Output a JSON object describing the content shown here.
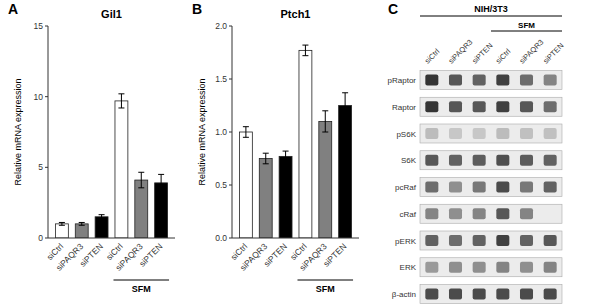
{
  "chart_data": [
    {
      "type": "bar",
      "panel_label": "A",
      "title": "Gil1",
      "ylabel": "Relative mRNA expression",
      "categories": [
        "siCtrl",
        "siPAQR3",
        "siPTEN",
        "siCtrl",
        "siPAQR3",
        "siPTEN"
      ],
      "values": [
        1.0,
        1.0,
        1.5,
        9.7,
        4.1,
        3.9
      ],
      "errors": [
        0.1,
        0.1,
        0.15,
        0.5,
        0.55,
        0.6
      ],
      "colors": [
        "white",
        "#808080",
        "black",
        "white",
        "#808080",
        "black"
      ],
      "ylim": [
        0,
        15
      ],
      "yticks": [
        0,
        5,
        10,
        15
      ],
      "annotations": [
        {
          "text": "SFM",
          "indices": [
            3,
            4,
            5
          ]
        }
      ]
    },
    {
      "type": "bar",
      "panel_label": "B",
      "title": "Ptch1",
      "ylabel": "Relative mRNA expression",
      "categories": [
        "siCtrl",
        "siPAQR3",
        "siPTEN",
        "siCtrl",
        "siPAQR3",
        "siPTEN"
      ],
      "values": [
        1.0,
        0.75,
        0.77,
        1.77,
        1.1,
        1.25
      ],
      "errors": [
        0.05,
        0.05,
        0.05,
        0.05,
        0.1,
        0.12
      ],
      "colors": [
        "white",
        "#808080",
        "black",
        "white",
        "#808080",
        "black"
      ],
      "ylim": [
        0,
        2.0
      ],
      "yticks": [
        {
          "value": 0,
          "label": "0.0"
        },
        0.5,
        {
          "value": 1,
          "label": "1.0"
        },
        1.5,
        {
          "value": 2,
          "label": "2.0"
        }
      ],
      "annotations": [
        {
          "text": "SFM",
          "indices": [
            3,
            4,
            5
          ]
        }
      ]
    },
    {
      "type": "blot",
      "panel_label": "C",
      "title": "NIH/3T3",
      "col_labels": [
        "siCtrl",
        "siPAQR3",
        "siPTEN",
        "siCtrl",
        "siPAQR3",
        "siPTEN"
      ],
      "row_labels": [
        "pRaptor",
        "Raptor",
        "pS6K",
        "S6K",
        "pcRaf",
        "cRaf",
        "pERK",
        "ERK",
        "β-actin"
      ],
      "cells": [
        [
          0.9,
          0.75,
          0.7,
          0.85,
          0.65,
          0.55
        ],
        [
          0.9,
          0.75,
          0.75,
          0.85,
          0.75,
          0.65
        ],
        [
          0.3,
          0.25,
          0.25,
          0.3,
          0.28,
          0.28
        ],
        [
          0.75,
          0.7,
          0.72,
          0.78,
          0.72,
          0.7
        ],
        [
          0.65,
          0.5,
          0.6,
          0.8,
          0.6,
          0.7
        ],
        [
          0.55,
          0.5,
          0.55,
          0.75,
          0.55,
          0.0
        ],
        [
          0.7,
          0.65,
          0.7,
          0.85,
          0.7,
          0.75
        ],
        [
          0.45,
          0.5,
          0.5,
          0.55,
          0.5,
          0.55
        ],
        [
          0.8,
          0.8,
          0.8,
          0.8,
          0.8,
          0.8
        ]
      ],
      "annotations": [
        {
          "text": "SFM",
          "indices": [
            3,
            4,
            5
          ]
        }
      ]
    }
  ]
}
